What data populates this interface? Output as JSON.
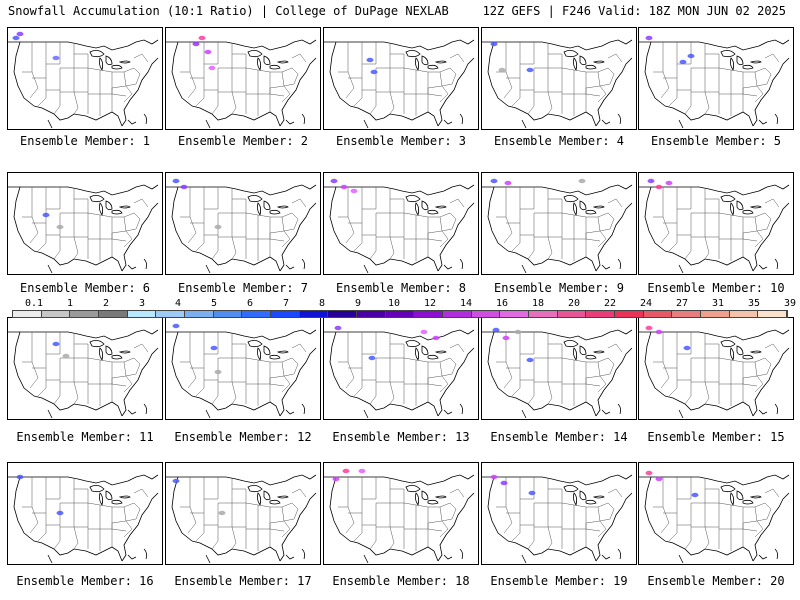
{
  "header": {
    "left": "Snowfall Accumulation (10:1 Ratio) | College of DuPage NEXLAB",
    "right": "12Z GEFS | F246 Valid: 18Z MON JUN 02 2025"
  },
  "members": [
    {
      "label": "Ensemble Member: 1",
      "snow": [
        {
          "x": 8,
          "y": 10,
          "c": "#4a58ff"
        },
        {
          "x": 12,
          "y": 6,
          "c": "#8a3cff"
        },
        {
          "x": 48,
          "y": 30,
          "c": "#6a6aff"
        }
      ]
    },
    {
      "label": "Ensemble Member: 2",
      "snow": [
        {
          "x": 30,
          "y": 16,
          "c": "#9a2eff"
        },
        {
          "x": 42,
          "y": 24,
          "c": "#d040ff"
        },
        {
          "x": 46,
          "y": 40,
          "c": "#e060ff"
        },
        {
          "x": 36,
          "y": 10,
          "c": "#ff3a9a"
        }
      ]
    },
    {
      "label": "Ensemble Member: 3",
      "snow": [
        {
          "x": 46,
          "y": 32,
          "c": "#4a58ff"
        },
        {
          "x": 50,
          "y": 44,
          "c": "#4a58ff"
        }
      ]
    },
    {
      "label": "Ensemble Member: 4",
      "snow": [
        {
          "x": 12,
          "y": 16,
          "c": "#4a58ff"
        },
        {
          "x": 48,
          "y": 42,
          "c": "#4a58ff"
        },
        {
          "x": 20,
          "y": 42,
          "c": "#aaaaaa"
        }
      ]
    },
    {
      "label": "Ensemble Member: 5",
      "snow": [
        {
          "x": 10,
          "y": 10,
          "c": "#8a3cff"
        },
        {
          "x": 44,
          "y": 34,
          "c": "#4a58ff"
        },
        {
          "x": 52,
          "y": 28,
          "c": "#4a58ff"
        }
      ]
    },
    {
      "label": "Ensemble Member: 6",
      "snow": [
        {
          "x": 38,
          "y": 42,
          "c": "#4a58ff"
        },
        {
          "x": 52,
          "y": 54,
          "c": "#aaaaaa"
        }
      ]
    },
    {
      "label": "Ensemble Member: 7",
      "snow": [
        {
          "x": 10,
          "y": 8,
          "c": "#4a58ff"
        },
        {
          "x": 18,
          "y": 14,
          "c": "#8a3cff"
        },
        {
          "x": 52,
          "y": 54,
          "c": "#aaaaaa"
        }
      ]
    },
    {
      "label": "Ensemble Member: 8",
      "snow": [
        {
          "x": 10,
          "y": 8,
          "c": "#8a3cff"
        },
        {
          "x": 20,
          "y": 14,
          "c": "#d040ff"
        },
        {
          "x": 30,
          "y": 18,
          "c": "#e060ff"
        }
      ]
    },
    {
      "label": "Ensemble Member: 9",
      "snow": [
        {
          "x": 12,
          "y": 8,
          "c": "#4a58ff"
        },
        {
          "x": 26,
          "y": 10,
          "c": "#d040ff"
        },
        {
          "x": 100,
          "y": 8,
          "c": "#aaaaaa"
        }
      ]
    },
    {
      "label": "Ensemble Member: 10",
      "snow": [
        {
          "x": 12,
          "y": 8,
          "c": "#8a3cff"
        },
        {
          "x": 20,
          "y": 14,
          "c": "#ff3a9a"
        },
        {
          "x": 30,
          "y": 10,
          "c": "#d040ff"
        }
      ]
    },
    {
      "label": "Ensemble Member: 11",
      "snow": [
        {
          "x": 48,
          "y": 26,
          "c": "#4a58ff"
        },
        {
          "x": 58,
          "y": 38,
          "c": "#aaaaaa"
        }
      ]
    },
    {
      "label": "Ensemble Member: 12",
      "snow": [
        {
          "x": 10,
          "y": 8,
          "c": "#4a58ff"
        },
        {
          "x": 48,
          "y": 30,
          "c": "#4a58ff"
        },
        {
          "x": 52,
          "y": 54,
          "c": "#aaaaaa"
        }
      ]
    },
    {
      "label": "Ensemble Member: 13",
      "snow": [
        {
          "x": 14,
          "y": 10,
          "c": "#8a3cff"
        },
        {
          "x": 100,
          "y": 14,
          "c": "#e060ff"
        },
        {
          "x": 112,
          "y": 20,
          "c": "#d040ff"
        },
        {
          "x": 48,
          "y": 40,
          "c": "#4a58ff"
        }
      ]
    },
    {
      "label": "Ensemble Member: 14",
      "snow": [
        {
          "x": 14,
          "y": 12,
          "c": "#4a58ff"
        },
        {
          "x": 24,
          "y": 20,
          "c": "#d040ff"
        },
        {
          "x": 36,
          "y": 14,
          "c": "#aaaaaa"
        },
        {
          "x": 48,
          "y": 42,
          "c": "#4a58ff"
        }
      ]
    },
    {
      "label": "Ensemble Member: 15",
      "snow": [
        {
          "x": 10,
          "y": 10,
          "c": "#ff3a9a"
        },
        {
          "x": 20,
          "y": 14,
          "c": "#d040ff"
        },
        {
          "x": 48,
          "y": 30,
          "c": "#4a58ff"
        }
      ]
    },
    {
      "label": "Ensemble Member: 16",
      "snow": [
        {
          "x": 12,
          "y": 14,
          "c": "#4a58ff"
        },
        {
          "x": 52,
          "y": 50,
          "c": "#4a58ff"
        }
      ]
    },
    {
      "label": "Ensemble Member: 17",
      "snow": [
        {
          "x": 10,
          "y": 18,
          "c": "#4a58ff"
        },
        {
          "x": 56,
          "y": 50,
          "c": "#aaaaaa"
        }
      ]
    },
    {
      "label": "Ensemble Member: 18",
      "snow": [
        {
          "x": 12,
          "y": 16,
          "c": "#d040ff"
        },
        {
          "x": 22,
          "y": 8,
          "c": "#ff3a9a"
        },
        {
          "x": 38,
          "y": 8,
          "c": "#e060ff"
        }
      ]
    },
    {
      "label": "Ensemble Member: 19",
      "snow": [
        {
          "x": 12,
          "y": 14,
          "c": "#d040ff"
        },
        {
          "x": 22,
          "y": 20,
          "c": "#8a3cff"
        },
        {
          "x": 50,
          "y": 30,
          "c": "#4a58ff"
        }
      ]
    },
    {
      "label": "Ensemble Member: 20",
      "snow": [
        {
          "x": 10,
          "y": 10,
          "c": "#ff3a9a"
        },
        {
          "x": 20,
          "y": 16,
          "c": "#d040ff"
        },
        {
          "x": 56,
          "y": 32,
          "c": "#4a58ff"
        }
      ]
    }
  ],
  "colorbar": {
    "labels": [
      "0.1",
      "1",
      "2",
      "3",
      "4",
      "5",
      "6",
      "7",
      "8",
      "9",
      "10",
      "12",
      "14",
      "16",
      "18",
      "20",
      "22",
      "24",
      "27",
      "31",
      "35",
      "39"
    ],
    "colors": [
      "#ececec",
      "#c6c6c6",
      "#9a9a9a",
      "#7a7a7a",
      "#b8e8ff",
      "#9ecbf5",
      "#7aaff0",
      "#4f8ef0",
      "#2f6cff",
      "#1b48ff",
      "#1012d6",
      "#260099",
      "#4a00a6",
      "#6500b8",
      "#8a11d0",
      "#b02edc",
      "#cf4fe0",
      "#e06ae0",
      "#e66fbc",
      "#e65595",
      "#e83d78",
      "#eb3359",
      "#e65a68",
      "#e77d7c",
      "#eea08d",
      "#f5c3aa",
      "#fbe2cb"
    ]
  }
}
